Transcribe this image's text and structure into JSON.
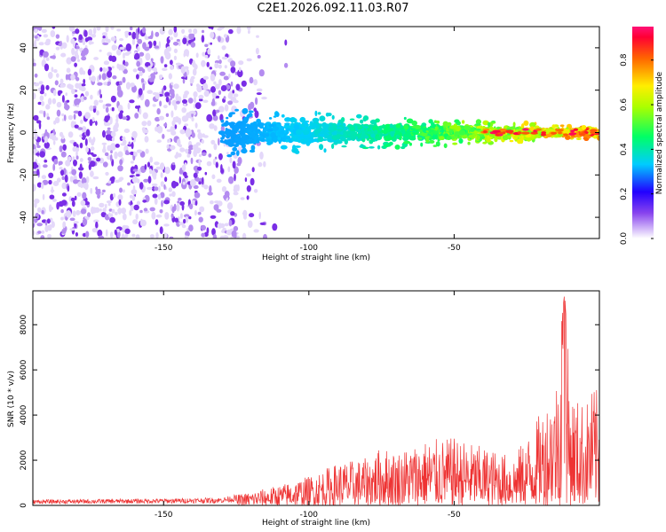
{
  "title": "C2E1.2026.092.11.03.R07",
  "chart_data": [
    {
      "type": "heatmap",
      "title": "C2E1.2026.092.11.03.R07",
      "xlabel": "Height of straight line (km)",
      "ylabel": "Frequency (Hz)",
      "xlim": [
        -195,
        0
      ],
      "ylim": [
        -50,
        50
      ],
      "xticks": [
        -150,
        -100,
        -50
      ],
      "yticks": [
        -40,
        -20,
        0,
        20,
        40
      ],
      "colorbar": {
        "label": "Normalized spectral amplitude",
        "range": [
          0,
          0.95
        ],
        "ticks": [
          0.0,
          0.2,
          0.4,
          0.6,
          0.8
        ]
      },
      "features": [
        {
          "name": "scattered noise",
          "x_range": [
            -195,
            -115
          ],
          "freq_range": [
            -50,
            50
          ],
          "amplitude": 0.15
        },
        {
          "name": "signal track",
          "x_range": [
            -130,
            0
          ],
          "freq_center": 0,
          "freq_halfwidth_start": 8,
          "freq_halfwidth_end": 2,
          "amplitude_start": 0.2,
          "amplitude_end": 0.95
        }
      ]
    },
    {
      "type": "line",
      "xlabel": "Height of straight line (km)",
      "ylabel": "SNR (10 * v/v)",
      "xlim": [
        -195,
        0
      ],
      "ylim": [
        0,
        9500
      ],
      "xticks": [
        -150,
        -100,
        -50
      ],
      "yticks": [
        0,
        2000,
        4000,
        6000,
        8000
      ],
      "series": [
        {
          "name": "SNR",
          "color": "#ee3333",
          "envelope_x": [
            -195,
            -150,
            -130,
            -120,
            -110,
            -100,
            -90,
            -80,
            -75,
            -70,
            -60,
            -50,
            -40,
            -30,
            -25,
            -20,
            -15,
            -12,
            -10,
            -8,
            -5,
            -2,
            0
          ],
          "envelope_y": [
            250,
            300,
            350,
            600,
            900,
            1300,
            1900,
            2100,
            2600,
            2400,
            2900,
            3000,
            2600,
            2200,
            3000,
            4200,
            5500,
            9400,
            5200,
            4800,
            4500,
            5300,
            5000
          ]
        }
      ]
    }
  ]
}
